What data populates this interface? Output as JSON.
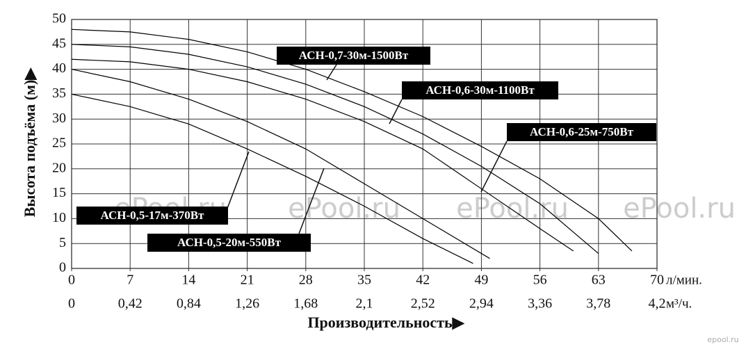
{
  "chart_data": {
    "type": "line",
    "xlabel": "Производительность▶",
    "ylabel": "Высота подъёма (м)▶",
    "xunit": "л/мин.",
    "x2unit": "м³/ч.",
    "watermark": "ePool.ru",
    "logo": "epool.ru",
    "xlim": [
      0,
      70
    ],
    "xticks": [
      0,
      7,
      14,
      21,
      28,
      35,
      42,
      49,
      56,
      63,
      70
    ],
    "x2lim": [
      0,
      4.2
    ],
    "x2ticks": [
      0,
      {
        "value": 0.42,
        "label": "0,42"
      },
      {
        "value": 0.84,
        "label": "0,84"
      },
      {
        "value": 1.26,
        "label": "1,26"
      },
      {
        "value": 1.68,
        "label": "1,68"
      },
      {
        "value": 2.1,
        "label": "2,1"
      },
      {
        "value": 2.52,
        "label": "2,52"
      },
      {
        "value": 2.94,
        "label": "2,94"
      },
      {
        "value": 3.36,
        "label": "3,36"
      },
      {
        "value": 3.78,
        "label": "3,78"
      },
      {
        "value": 4.2,
        "label": "4,2"
      }
    ],
    "ylim": [
      0,
      50
    ],
    "yticks": [
      0,
      5,
      10,
      15,
      20,
      25,
      30,
      35,
      40,
      45,
      50
    ],
    "grid": true,
    "series": [
      {
        "name": "АСН-0,7-30м-1500Вт",
        "color": "#000000",
        "x": [
          0,
          7,
          14,
          21,
          28,
          35,
          42,
          49,
          56,
          63,
          67
        ],
        "values": [
          48,
          47.5,
          46,
          43.5,
          40,
          35.5,
          30.5,
          24.5,
          18,
          10,
          3.5
        ]
      },
      {
        "name": "АСН-0,6-30м-1100Вт",
        "color": "#000000",
        "x": [
          0,
          7,
          14,
          21,
          28,
          35,
          42,
          49,
          56,
          63
        ],
        "values": [
          45,
          44.5,
          43,
          40.5,
          37,
          32.5,
          27,
          20.5,
          13,
          3
        ]
      },
      {
        "name": "АСН-0,6-25м-750Вт",
        "color": "#000000",
        "x": [
          0,
          7,
          14,
          21,
          28,
          35,
          42,
          49,
          56,
          60
        ],
        "values": [
          42,
          41.5,
          40,
          37.5,
          34,
          29.5,
          24,
          16,
          8,
          3.5
        ]
      },
      {
        "name": "АСН-0,5-20м-550Вт",
        "color": "#000000",
        "x": [
          0,
          7,
          14,
          21,
          28,
          35,
          42,
          50
        ],
        "values": [
          40,
          37.5,
          34,
          29.5,
          24,
          17,
          10,
          2
        ]
      },
      {
        "name": "АСН-0,5-17м-370Вт",
        "color": "#000000",
        "x": [
          0,
          7,
          14,
          21,
          28,
          35,
          42,
          48
        ],
        "values": [
          35,
          32.5,
          29,
          24,
          18.5,
          12.5,
          6,
          1
        ]
      }
    ]
  }
}
